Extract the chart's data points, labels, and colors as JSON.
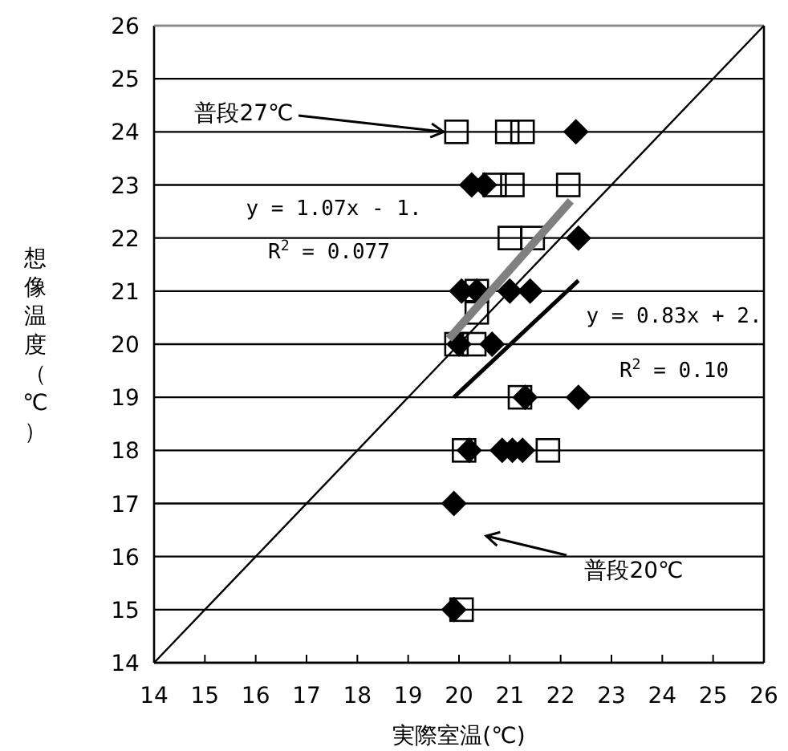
{
  "chart_data": {
    "type": "scatter",
    "xlabel": "実際室温(℃)",
    "ylabel": "想像温度（℃）",
    "xlim": [
      14,
      26
    ],
    "ylim": [
      14,
      26
    ],
    "xticks": [
      14,
      15,
      16,
      17,
      18,
      19,
      20,
      21,
      22,
      23,
      24,
      25,
      26
    ],
    "yticks": [
      14,
      15,
      16,
      17,
      18,
      19,
      20,
      21,
      22,
      23,
      24,
      25,
      26
    ],
    "grid": "y",
    "series": [
      {
        "type": "scatter",
        "color": "#000000",
        "marker": "diamond",
        "x": [
          22.3,
          20.25,
          20.5,
          22.35,
          20.05,
          20.35,
          21.0,
          21.4,
          20.0,
          20.65,
          21.3,
          22.35,
          20.2,
          20.85,
          21.05,
          21.25,
          19.9,
          19.9
        ],
        "values": [
          24,
          23,
          23,
          22,
          21,
          21,
          21,
          21,
          20,
          20,
          19,
          19,
          18,
          18,
          18,
          18,
          17,
          15
        ]
      },
      {
        "type": "scatter",
        "color": "#000000",
        "marker": "square",
        "x": [
          19.95,
          20.95,
          21.25,
          20.7,
          21.05,
          22.15,
          21.0,
          21.45,
          20.35,
          20.35,
          19.95,
          20.3,
          21.2,
          20.1,
          21.75,
          20.05
        ],
        "values": [
          24,
          24,
          24,
          23,
          23,
          23,
          22,
          22,
          21,
          20.6,
          20,
          20,
          19,
          18,
          18,
          15
        ]
      },
      {
        "type": "line",
        "color": "#000000",
        "marker": "none",
        "x": [
          14,
          26
        ],
        "values": [
          14,
          26
        ]
      },
      {
        "type": "line",
        "color": "#808080",
        "marker": "none",
        "x": [
          19.8,
          22.2
        ],
        "values": [
          20.1,
          22.7
        ]
      },
      {
        "type": "line",
        "color": "#000000",
        "marker": "none",
        "x": [
          19.9,
          22.35
        ],
        "values": [
          19.0,
          21.2
        ]
      }
    ],
    "annotations": [
      {
        "text": "普段27℃",
        "x": 19.95,
        "y": 24
      },
      "普段20℃",
      "y = 1.07x - 1.",
      "R$^{2}$ = 0.077",
      "y = 0.83x + 2.",
      "R$^{2}$ = 0.10"
    ]
  }
}
